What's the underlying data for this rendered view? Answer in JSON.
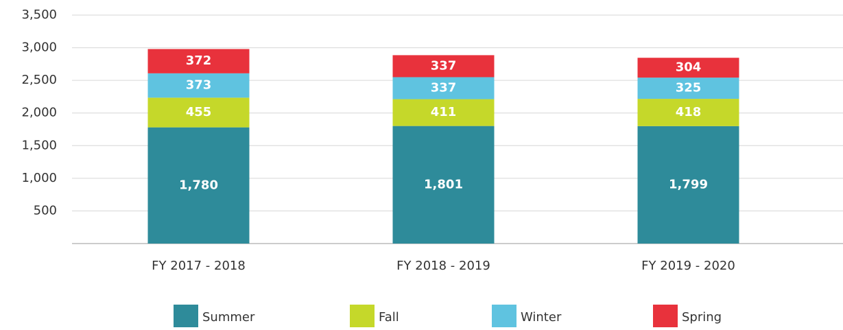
{
  "chart_data": {
    "type": "stacked_bar",
    "categories": [
      "FY 2017 - 2018",
      "FY 2018 - 2019",
      "FY 2019 - 2020"
    ],
    "series": [
      {
        "name": "Summer",
        "color": "#2e8b9a",
        "values": [
          1780,
          1801,
          1799
        ],
        "value_labels": [
          "1,780",
          "1,801",
          "1,799"
        ]
      },
      {
        "name": "Fall",
        "color": "#c5d82a",
        "values": [
          455,
          411,
          418
        ]
      },
      {
        "name": "Winter",
        "color": "#5fc3e0",
        "values": [
          373,
          337,
          325
        ]
      },
      {
        "name": "Spring",
        "color": "#e8323c",
        "values": [
          372,
          337,
          304
        ]
      }
    ],
    "ylim": [
      0,
      3500
    ],
    "yticks": [
      500,
      {
        "value": 1000,
        "label": "1,000"
      },
      {
        "value": 1500,
        "label": "1,500"
      },
      {
        "value": 2000,
        "label": "2,000"
      },
      {
        "value": 2500,
        "label": "2,500"
      },
      {
        "value": 3000,
        "label": "3,000"
      },
      {
        "value": 3500,
        "label": "3,500"
      }
    ],
    "grid": true,
    "legend": "bottom"
  }
}
